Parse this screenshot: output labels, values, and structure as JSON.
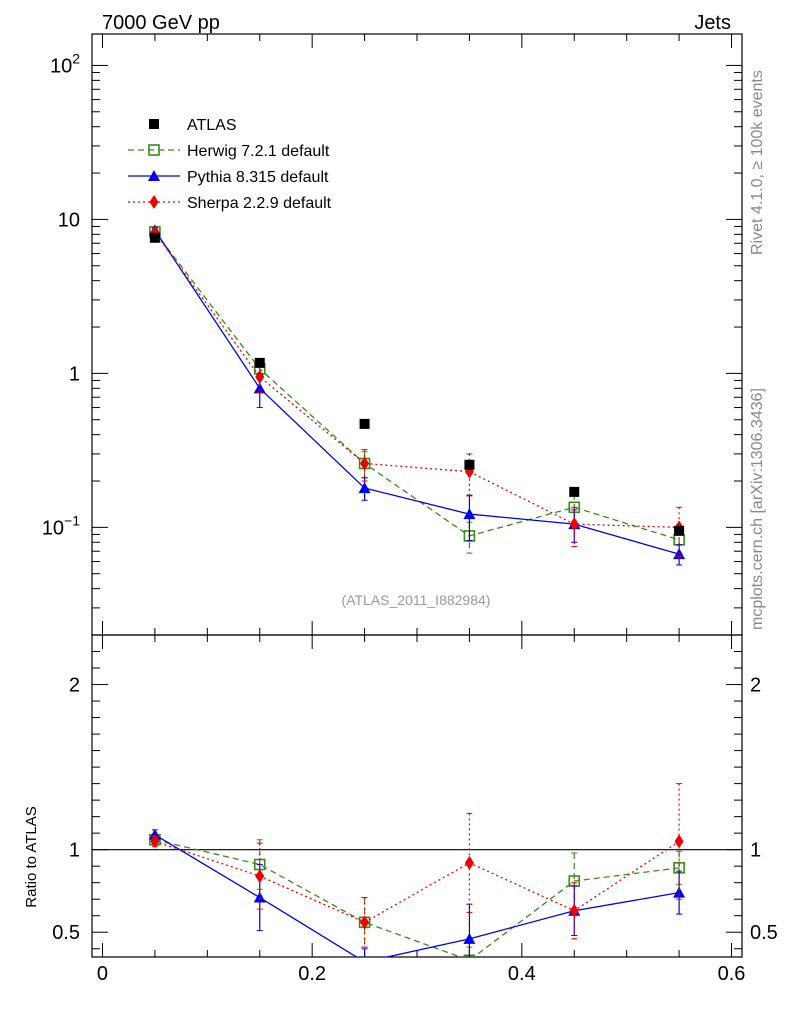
{
  "header": {
    "energy_label": "7000 GeV pp",
    "category_label": "Jets"
  },
  "watermark": {
    "reference": "(ATLAS_2011_I882984)"
  },
  "sidebar": {
    "rivet_label": "Rivet 4.1.0, ≥ 100k events",
    "source_label": "mcplots.cern.ch [arXiv:1306.3436]"
  },
  "ratio_panel": {
    "ylabel": "Ratio to ATLAS"
  },
  "colors": {
    "atlas": "#000000",
    "herwig": "#3a8a1a",
    "pythia": "#0000ee",
    "sherpa": "#ee0000"
  },
  "chart_data": [
    {
      "type": "scatter",
      "panel": "main",
      "yscale": "log",
      "xlim": [
        -0.01,
        0.61
      ],
      "ylim": [
        0.02,
        160
      ],
      "x_ticks": [
        "0",
        "0.2",
        "0.4",
        "0.6"
      ],
      "y_ticks": [
        "10^-1",
        "1",
        "10",
        "10^2"
      ],
      "x": [
        0.05,
        0.15,
        0.25,
        0.35,
        0.45,
        0.55
      ],
      "series": [
        {
          "name": "ATLAS",
          "style": "square-filled",
          "values": [
            7.6,
            1.17,
            0.47,
            0.255,
            0.17,
            0.095
          ],
          "err": [
            0.2,
            0.03,
            0.01,
            0.008,
            0.005,
            0.004
          ]
        },
        {
          "name": "Herwig 7.2.1 default",
          "style": "square-open-dashed",
          "values": [
            8.3,
            1.07,
            0.26,
            0.088,
            0.135,
            0.083
          ],
          "err": [
            0.3,
            0.15,
            0.05,
            0.02,
            0.03,
            0.015
          ]
        },
        {
          "name": "Pythia 8.315 default",
          "style": "triangle-solid",
          "values": [
            8.5,
            0.8,
            0.18,
            0.122,
            0.105,
            0.067
          ],
          "err": [
            0.3,
            0.2,
            0.03,
            0.04,
            0.025,
            0.01
          ]
        },
        {
          "name": "Sherpa 2.2.9 default",
          "style": "diamond-dotted",
          "values": [
            8.2,
            0.95,
            0.26,
            0.23,
            0.105,
            0.1
          ],
          "err": [
            0.3,
            0.2,
            0.06,
            0.07,
            0.03,
            0.035
          ]
        }
      ]
    },
    {
      "type": "line",
      "panel": "ratio",
      "ylabel": "Ratio to ATLAS",
      "ylim": [
        0.35,
        2.3
      ],
      "y_ticks": [
        "0.5",
        "1",
        "2"
      ],
      "reference_line": 1,
      "x": [
        0.05,
        0.15,
        0.25,
        0.35,
        0.45,
        0.55
      ],
      "series": [
        {
          "name": "Herwig 7.2.1 default",
          "values": [
            1.06,
            0.91,
            0.56,
            0.33,
            0.81,
            0.89
          ],
          "err": [
            0.03,
            0.15,
            0.15,
            0.08,
            0.17,
            0.1
          ]
        },
        {
          "name": "Pythia 8.315 default",
          "values": [
            1.09,
            0.71,
            0.32,
            0.46,
            0.63,
            0.74
          ],
          "err": [
            0.03,
            0.2,
            0.08,
            0.21,
            0.15,
            0.13
          ]
        },
        {
          "name": "Sherpa 2.2.9 default",
          "values": [
            1.05,
            0.84,
            0.56,
            0.92,
            0.63,
            1.05
          ],
          "err": [
            0.03,
            0.2,
            0.15,
            0.3,
            0.17,
            0.35
          ]
        }
      ]
    }
  ]
}
